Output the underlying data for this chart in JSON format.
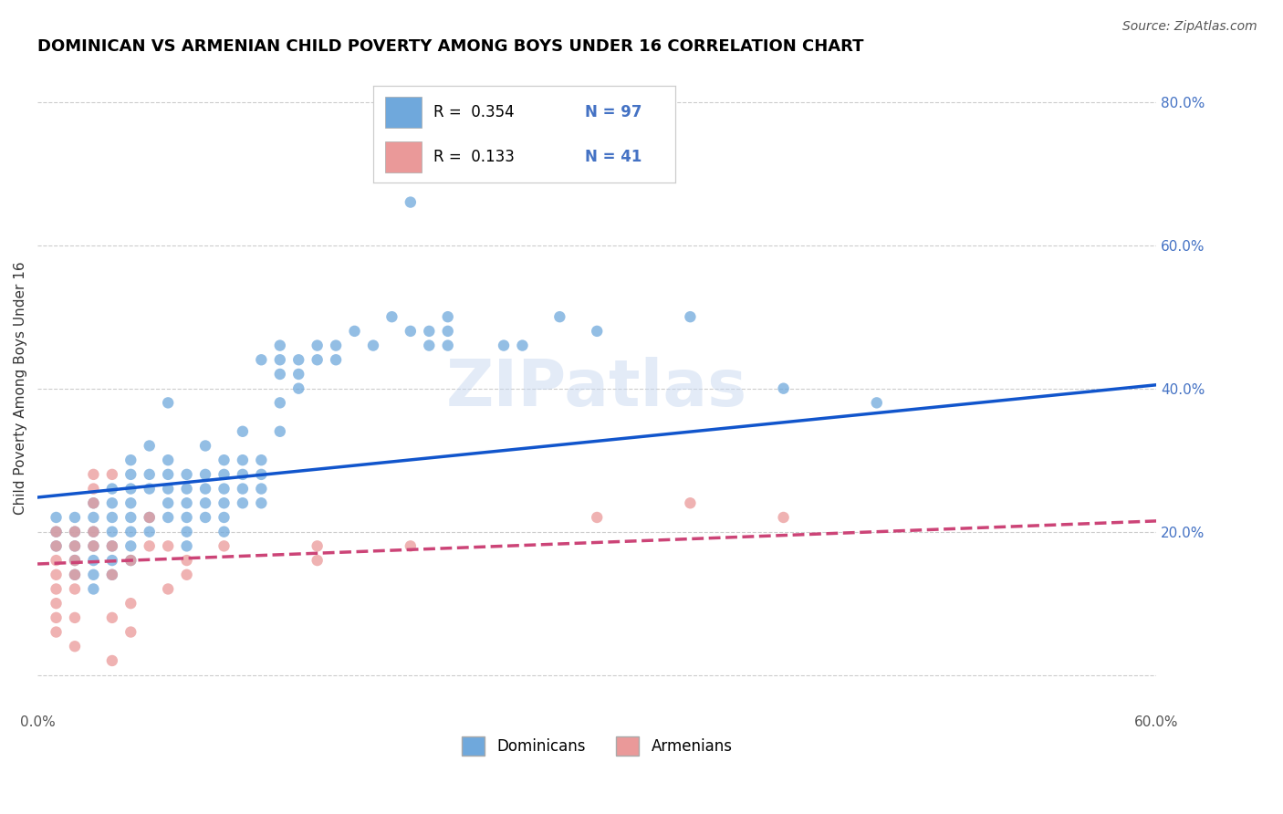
{
  "title": "DOMINICAN VS ARMENIAN CHILD POVERTY AMONG BOYS UNDER 16 CORRELATION CHART",
  "source": "Source: ZipAtlas.com",
  "ylabel": "Child Poverty Among Boys Under 16",
  "xlim": [
    0.0,
    0.6
  ],
  "ylim": [
    -0.05,
    0.85
  ],
  "xticks": [
    0.0,
    0.1,
    0.2,
    0.3,
    0.4,
    0.5,
    0.6
  ],
  "xticklabels": [
    "0.0%",
    "",
    "",
    "",
    "",
    "",
    "60.0%"
  ],
  "yticks_right": [
    0.0,
    0.2,
    0.4,
    0.6,
    0.8
  ],
  "yticklabels_right": [
    "",
    "20.0%",
    "40.0%",
    "60.0%",
    "80.0%"
  ],
  "legend_r1": "R =  0.354",
  "legend_n1": "N = 97",
  "legend_r2": "R =  0.133",
  "legend_n2": "N = 41",
  "blue_color": "#6fa8dc",
  "pink_color": "#ea9999",
  "blue_line_color": "#1155cc",
  "pink_line_color": "#cc4477",
  "dominicans_label": "Dominicans",
  "armenians_label": "Armenians",
  "blue_points": [
    [
      0.01,
      0.22
    ],
    [
      0.01,
      0.2
    ],
    [
      0.01,
      0.18
    ],
    [
      0.02,
      0.22
    ],
    [
      0.02,
      0.2
    ],
    [
      0.02,
      0.18
    ],
    [
      0.02,
      0.16
    ],
    [
      0.02,
      0.14
    ],
    [
      0.03,
      0.24
    ],
    [
      0.03,
      0.22
    ],
    [
      0.03,
      0.2
    ],
    [
      0.03,
      0.18
    ],
    [
      0.03,
      0.16
    ],
    [
      0.03,
      0.14
    ],
    [
      0.03,
      0.12
    ],
    [
      0.04,
      0.26
    ],
    [
      0.04,
      0.24
    ],
    [
      0.04,
      0.22
    ],
    [
      0.04,
      0.2
    ],
    [
      0.04,
      0.18
    ],
    [
      0.04,
      0.16
    ],
    [
      0.04,
      0.14
    ],
    [
      0.05,
      0.3
    ],
    [
      0.05,
      0.28
    ],
    [
      0.05,
      0.26
    ],
    [
      0.05,
      0.24
    ],
    [
      0.05,
      0.22
    ],
    [
      0.05,
      0.2
    ],
    [
      0.05,
      0.18
    ],
    [
      0.05,
      0.16
    ],
    [
      0.06,
      0.32
    ],
    [
      0.06,
      0.28
    ],
    [
      0.06,
      0.26
    ],
    [
      0.06,
      0.22
    ],
    [
      0.06,
      0.2
    ],
    [
      0.07,
      0.38
    ],
    [
      0.07,
      0.3
    ],
    [
      0.07,
      0.28
    ],
    [
      0.07,
      0.26
    ],
    [
      0.07,
      0.24
    ],
    [
      0.07,
      0.22
    ],
    [
      0.08,
      0.28
    ],
    [
      0.08,
      0.26
    ],
    [
      0.08,
      0.24
    ],
    [
      0.08,
      0.22
    ],
    [
      0.08,
      0.2
    ],
    [
      0.08,
      0.18
    ],
    [
      0.09,
      0.32
    ],
    [
      0.09,
      0.28
    ],
    [
      0.09,
      0.26
    ],
    [
      0.09,
      0.24
    ],
    [
      0.09,
      0.22
    ],
    [
      0.1,
      0.3
    ],
    [
      0.1,
      0.28
    ],
    [
      0.1,
      0.26
    ],
    [
      0.1,
      0.24
    ],
    [
      0.1,
      0.22
    ],
    [
      0.1,
      0.2
    ],
    [
      0.11,
      0.34
    ],
    [
      0.11,
      0.3
    ],
    [
      0.11,
      0.28
    ],
    [
      0.11,
      0.26
    ],
    [
      0.11,
      0.24
    ],
    [
      0.12,
      0.44
    ],
    [
      0.12,
      0.3
    ],
    [
      0.12,
      0.28
    ],
    [
      0.12,
      0.26
    ],
    [
      0.12,
      0.24
    ],
    [
      0.13,
      0.46
    ],
    [
      0.13,
      0.44
    ],
    [
      0.13,
      0.42
    ],
    [
      0.13,
      0.38
    ],
    [
      0.13,
      0.34
    ],
    [
      0.14,
      0.44
    ],
    [
      0.14,
      0.42
    ],
    [
      0.14,
      0.4
    ],
    [
      0.15,
      0.46
    ],
    [
      0.15,
      0.44
    ],
    [
      0.16,
      0.46
    ],
    [
      0.16,
      0.44
    ],
    [
      0.17,
      0.48
    ],
    [
      0.18,
      0.46
    ],
    [
      0.19,
      0.5
    ],
    [
      0.2,
      0.66
    ],
    [
      0.2,
      0.48
    ],
    [
      0.21,
      0.48
    ],
    [
      0.21,
      0.46
    ],
    [
      0.22,
      0.5
    ],
    [
      0.22,
      0.48
    ],
    [
      0.22,
      0.46
    ],
    [
      0.25,
      0.46
    ],
    [
      0.26,
      0.46
    ],
    [
      0.28,
      0.5
    ],
    [
      0.3,
      0.48
    ],
    [
      0.35,
      0.5
    ],
    [
      0.4,
      0.4
    ],
    [
      0.45,
      0.38
    ]
  ],
  "pink_points": [
    [
      0.01,
      0.2
    ],
    [
      0.01,
      0.18
    ],
    [
      0.01,
      0.16
    ],
    [
      0.01,
      0.14
    ],
    [
      0.01,
      0.12
    ],
    [
      0.01,
      0.1
    ],
    [
      0.01,
      0.08
    ],
    [
      0.01,
      0.06
    ],
    [
      0.02,
      0.2
    ],
    [
      0.02,
      0.18
    ],
    [
      0.02,
      0.16
    ],
    [
      0.02,
      0.14
    ],
    [
      0.02,
      0.12
    ],
    [
      0.02,
      0.08
    ],
    [
      0.02,
      0.04
    ],
    [
      0.03,
      0.28
    ],
    [
      0.03,
      0.26
    ],
    [
      0.03,
      0.24
    ],
    [
      0.03,
      0.2
    ],
    [
      0.03,
      0.18
    ],
    [
      0.04,
      0.28
    ],
    [
      0.04,
      0.18
    ],
    [
      0.04,
      0.14
    ],
    [
      0.04,
      0.08
    ],
    [
      0.04,
      0.02
    ],
    [
      0.05,
      0.16
    ],
    [
      0.05,
      0.1
    ],
    [
      0.05,
      0.06
    ],
    [
      0.06,
      0.22
    ],
    [
      0.06,
      0.18
    ],
    [
      0.07,
      0.18
    ],
    [
      0.07,
      0.12
    ],
    [
      0.08,
      0.16
    ],
    [
      0.08,
      0.14
    ],
    [
      0.1,
      0.18
    ],
    [
      0.15,
      0.18
    ],
    [
      0.15,
      0.16
    ],
    [
      0.2,
      0.18
    ],
    [
      0.3,
      0.22
    ],
    [
      0.35,
      0.24
    ],
    [
      0.4,
      0.22
    ]
  ],
  "blue_line_x": [
    0.0,
    0.6
  ],
  "blue_line_y": [
    0.248,
    0.405
  ],
  "pink_line_x": [
    0.0,
    0.6
  ],
  "pink_line_y": [
    0.155,
    0.215
  ],
  "watermark": "ZIPatlas",
  "grid_color": "#cccccc",
  "title_fontsize": 13,
  "axis_label_fontsize": 11,
  "tick_fontsize": 11
}
